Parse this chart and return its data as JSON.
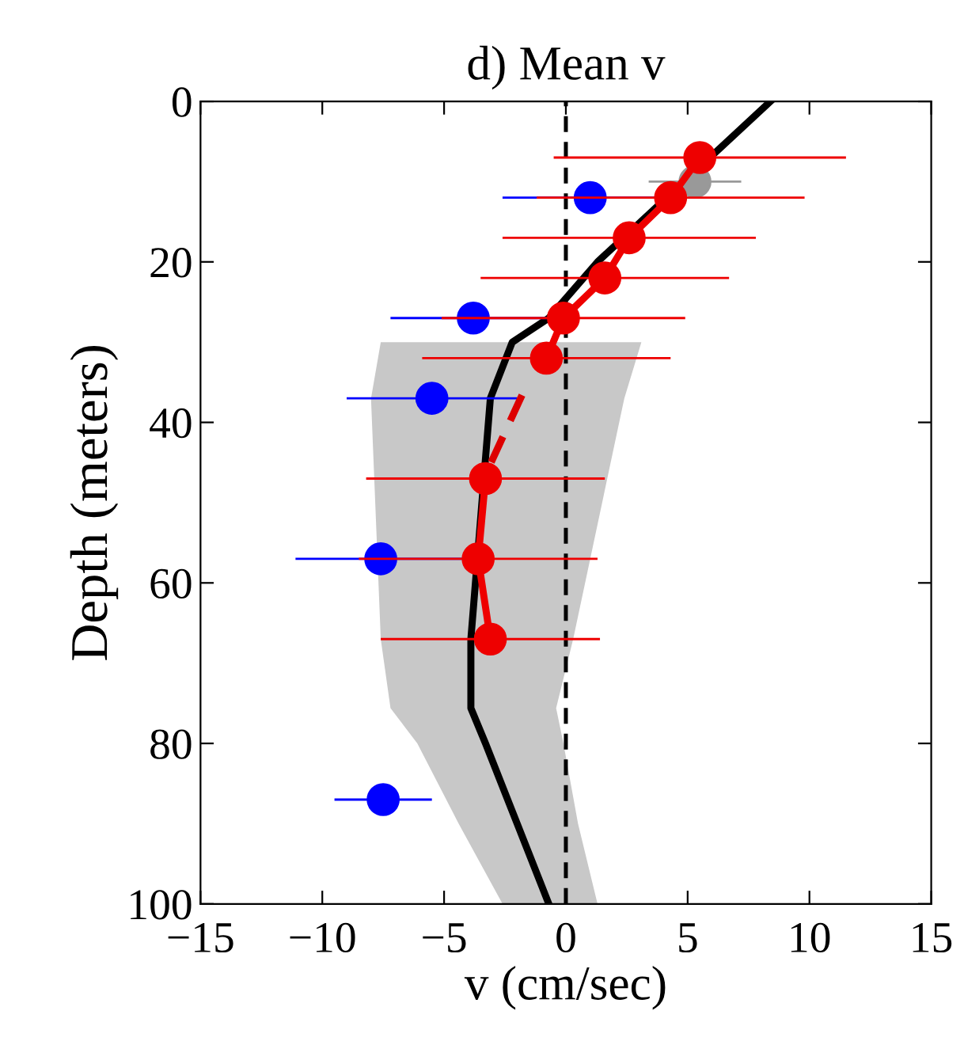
{
  "chart_data": {
    "type": "line",
    "orientation": "horizontal",
    "title": "d) Mean v",
    "xlabel": "v (cm/sec)",
    "ylabel": "Depth (meters)",
    "xlim": [
      -15,
      15
    ],
    "xticks": [
      {
        "value": -15,
        "label": "−15"
      },
      {
        "value": -10,
        "label": "−10"
      },
      {
        "value": -5,
        "label": "−5"
      },
      0,
      5,
      10,
      15
    ],
    "ylim": [
      100,
      0
    ],
    "yticks": [
      0,
      20,
      40,
      60,
      80,
      100
    ],
    "grid": false,
    "legend": false,
    "ref_lines": [
      {
        "axis": "x",
        "value": 0,
        "color": "#000000",
        "line_style": "dashed"
      }
    ],
    "series": [
      {
        "color": "#000000",
        "marker": "none",
        "line_style": "solid",
        "x": [
          0,
          20,
          27,
          30,
          37,
          67,
          75.6,
          80,
          90,
          100
        ],
        "values": [
          8.4,
          1.3,
          -0.7,
          -2.2,
          -3.1,
          -3.9,
          -3.9,
          -3.3,
          -2.0,
          -0.7
        ],
        "lower": [
          null,
          null,
          null,
          -7.6,
          -8.0,
          -7.6,
          -7.2,
          -6.1,
          -4.4,
          -2.6
        ],
        "upper": [
          null,
          null,
          null,
          3.1,
          2.4,
          0.3,
          -0.4,
          -0.1,
          0.5,
          1.3
        ]
      },
      {
        "type": "scatter",
        "color": "#999999",
        "marker": "circle",
        "x": [
          10
        ],
        "values": [
          5.3
        ],
        "errors": [
          1.9
        ]
      },
      {
        "type": "scatter",
        "color": "#0000ff",
        "marker": "circle",
        "x": [
          12,
          27,
          37,
          57,
          87
        ],
        "values": [
          1.0,
          -3.8,
          -5.5,
          -7.6,
          -7.5
        ],
        "errors": [
          3.6,
          3.4,
          3.5,
          3.5,
          2.0
        ]
      },
      {
        "color": "#dd0000",
        "marker": "none",
        "line_style": "dashed",
        "x": [
          36.6,
          45.2
        ],
        "values": [
          -1.8,
          -3.1
        ]
      },
      {
        "color": "#ee0000",
        "marker": "circle",
        "line_style": "solid",
        "x": [
          7,
          12,
          17,
          22,
          27,
          32,
          null,
          47,
          57,
          67
        ],
        "values": [
          5.5,
          4.3,
          2.6,
          1.6,
          -0.1,
          -0.8,
          null,
          -3.3,
          -3.6,
          -3.1
        ],
        "errors": [
          6.0,
          5.5,
          5.2,
          5.1,
          5.0,
          5.1,
          null,
          4.9,
          4.9,
          4.5
        ]
      }
    ]
  }
}
